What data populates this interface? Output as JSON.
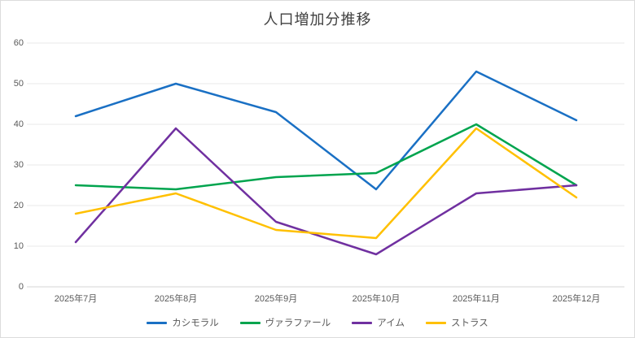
{
  "chart_data": {
    "type": "line",
    "title": "人口増加分推移",
    "categories": [
      "2025年7月",
      "2025年8月",
      "2025年9月",
      "2025年10月",
      "2025年11月",
      "2025年12月"
    ],
    "series": [
      {
        "name": "カシモラル",
        "color": "#1a70c4",
        "values": [
          42,
          50,
          43,
          24,
          53,
          41
        ]
      },
      {
        "name": "ヴァラファール",
        "color": "#00a44e",
        "values": [
          25,
          24,
          27,
          28,
          40,
          25
        ]
      },
      {
        "name": "アイム",
        "color": "#7030a0",
        "values": [
          11,
          39,
          16,
          8,
          23,
          25
        ]
      },
      {
        "name": "ストラス",
        "color": "#ffc000",
        "values": [
          18,
          23,
          14,
          12,
          39,
          22
        ]
      }
    ],
    "ylim": [
      0,
      60
    ],
    "yticks": [
      0,
      10,
      20,
      30,
      40,
      50,
      60
    ],
    "xlabel": "",
    "ylabel": "",
    "grid": true,
    "legend_position": "bottom",
    "colors": {
      "title_text": "#404040",
      "axis_text": "#595959",
      "gridline": "#e9e9e9",
      "axis_line": "#d6d6d6",
      "background": "#ffffff",
      "frame_border": "#dcdcdc"
    }
  }
}
